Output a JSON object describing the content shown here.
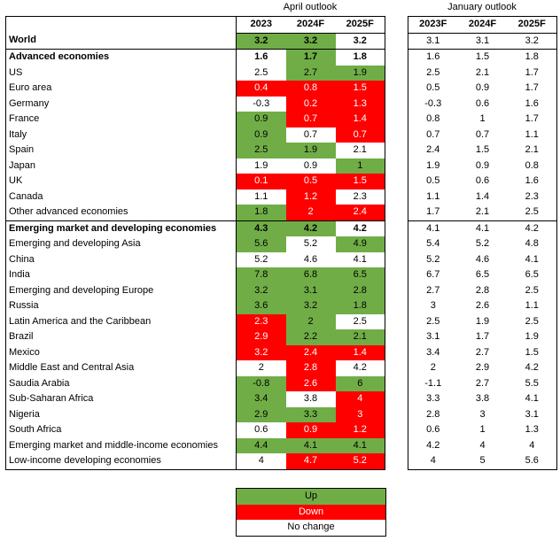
{
  "chart_data": {
    "type": "table",
    "april_caption": "April outlook",
    "january_caption": "January outlook",
    "april_columns": [
      "2023",
      "2024F",
      "2025F"
    ],
    "january_columns": [
      "2023F",
      "2024F",
      "2025F"
    ],
    "rows": [
      {
        "label": "World",
        "bold": true,
        "sep": false,
        "april": [
          "3.2",
          "3.2",
          "3.2"
        ],
        "status": [
          "up",
          "up",
          "same"
        ],
        "january": [
          "3.1",
          "3.1",
          "3.2"
        ]
      },
      {
        "label": "Advanced economies",
        "bold": true,
        "sep": true,
        "april": [
          "1.6",
          "1.7",
          "1.8"
        ],
        "status": [
          "same",
          "up",
          "same"
        ],
        "january": [
          "1.6",
          "1.5",
          "1.8"
        ]
      },
      {
        "label": "US",
        "bold": false,
        "sep": false,
        "april": [
          "2.5",
          "2.7",
          "1.9"
        ],
        "status": [
          "same",
          "up",
          "up"
        ],
        "january": [
          "2.5",
          "2.1",
          "1.7"
        ]
      },
      {
        "label": "Euro area",
        "bold": false,
        "sep": false,
        "april": [
          "0.4",
          "0.8",
          "1.5"
        ],
        "status": [
          "down",
          "down",
          "down"
        ],
        "january": [
          "0.5",
          "0.9",
          "1.7"
        ]
      },
      {
        "label": "Germany",
        "bold": false,
        "sep": false,
        "april": [
          "-0.3",
          "0.2",
          "1.3"
        ],
        "status": [
          "same",
          "down",
          "down"
        ],
        "january": [
          "-0.3",
          "0.6",
          "1.6"
        ]
      },
      {
        "label": "France",
        "bold": false,
        "sep": false,
        "april": [
          "0.9",
          "0.7",
          "1.4"
        ],
        "status": [
          "up",
          "down",
          "down"
        ],
        "january": [
          "0.8",
          "1",
          "1.7"
        ]
      },
      {
        "label": "Italy",
        "bold": false,
        "sep": false,
        "april": [
          "0.9",
          "0.7",
          "0.7"
        ],
        "status": [
          "up",
          "same",
          "down"
        ],
        "january": [
          "0.7",
          "0.7",
          "1.1"
        ]
      },
      {
        "label": "Spain",
        "bold": false,
        "sep": false,
        "april": [
          "2.5",
          "1.9",
          "2.1"
        ],
        "status": [
          "up",
          "up",
          "same"
        ],
        "january": [
          "2.4",
          "1.5",
          "2.1"
        ]
      },
      {
        "label": "Japan",
        "bold": false,
        "sep": false,
        "april": [
          "1.9",
          "0.9",
          "1"
        ],
        "status": [
          "same",
          "same",
          "up"
        ],
        "january": [
          "1.9",
          "0.9",
          "0.8"
        ]
      },
      {
        "label": "UK",
        "bold": false,
        "sep": false,
        "april": [
          "0.1",
          "0.5",
          "1.5"
        ],
        "status": [
          "down",
          "down",
          "down"
        ],
        "january": [
          "0.5",
          "0.6",
          "1.6"
        ]
      },
      {
        "label": "Canada",
        "bold": false,
        "sep": false,
        "april": [
          "1.1",
          "1.2",
          "2.3"
        ],
        "status": [
          "same",
          "down",
          "same"
        ],
        "january": [
          "1.1",
          "1.4",
          "2.3"
        ]
      },
      {
        "label": "Other advanced economies",
        "bold": false,
        "sep": false,
        "april": [
          "1.8",
          "2",
          "2.4"
        ],
        "status": [
          "up",
          "down",
          "down"
        ],
        "january": [
          "1.7",
          "2.1",
          "2.5"
        ]
      },
      {
        "label": "Emerging market and developing economies",
        "bold": true,
        "sep": true,
        "april": [
          "4.3",
          "4.2",
          "4.2"
        ],
        "status": [
          "up",
          "up",
          "same"
        ],
        "january": [
          "4.1",
          "4.1",
          "4.2"
        ]
      },
      {
        "label": "Emerging and developing Asia",
        "bold": false,
        "sep": false,
        "april": [
          "5.6",
          "5.2",
          "4.9"
        ],
        "status": [
          "up",
          "same",
          "up"
        ],
        "january": [
          "5.4",
          "5.2",
          "4.8"
        ]
      },
      {
        "label": "China",
        "bold": false,
        "sep": false,
        "april": [
          "5.2",
          "4.6",
          "4.1"
        ],
        "status": [
          "same",
          "same",
          "same"
        ],
        "january": [
          "5.2",
          "4.6",
          "4.1"
        ]
      },
      {
        "label": "India",
        "bold": false,
        "sep": false,
        "april": [
          "7.8",
          "6.8",
          "6.5"
        ],
        "status": [
          "up",
          "up",
          "up"
        ],
        "january": [
          "6.7",
          "6.5",
          "6.5"
        ]
      },
      {
        "label": "Emerging and developing Europe",
        "bold": false,
        "sep": false,
        "april": [
          "3.2",
          "3.1",
          "2.8"
        ],
        "status": [
          "up",
          "up",
          "up"
        ],
        "january": [
          "2.7",
          "2.8",
          "2.5"
        ]
      },
      {
        "label": "Russia",
        "bold": false,
        "sep": false,
        "april": [
          "3.6",
          "3.2",
          "1.8"
        ],
        "status": [
          "up",
          "up",
          "up"
        ],
        "january": [
          "3",
          "2.6",
          "1.1"
        ]
      },
      {
        "label": "Latin America and the Caribbean",
        "bold": false,
        "sep": false,
        "april": [
          "2.3",
          "2",
          "2.5"
        ],
        "status": [
          "down",
          "up",
          "same"
        ],
        "january": [
          "2.5",
          "1.9",
          "2.5"
        ]
      },
      {
        "label": "Brazil",
        "bold": false,
        "sep": false,
        "april": [
          "2.9",
          "2.2",
          "2.1"
        ],
        "status": [
          "down",
          "up",
          "up"
        ],
        "january": [
          "3.1",
          "1.7",
          "1.9"
        ]
      },
      {
        "label": "Mexico",
        "bold": false,
        "sep": false,
        "april": [
          "3.2",
          "2.4",
          "1.4"
        ],
        "status": [
          "down",
          "down",
          "down"
        ],
        "january": [
          "3.4",
          "2.7",
          "1.5"
        ]
      },
      {
        "label": "Middle East and Central Asia",
        "bold": false,
        "sep": false,
        "april": [
          "2",
          "2.8",
          "4.2"
        ],
        "status": [
          "same",
          "down",
          "same"
        ],
        "january": [
          "2",
          "2.9",
          "4.2"
        ]
      },
      {
        "label": "Saudia Arabia",
        "bold": false,
        "sep": false,
        "april": [
          "-0.8",
          "2.6",
          "6"
        ],
        "status": [
          "up",
          "down",
          "up"
        ],
        "january": [
          "-1.1",
          "2.7",
          "5.5"
        ]
      },
      {
        "label": "Sub-Saharan Africa",
        "bold": false,
        "sep": false,
        "april": [
          "3.4",
          "3.8",
          "4"
        ],
        "status": [
          "up",
          "same",
          "down"
        ],
        "january": [
          "3.3",
          "3.8",
          "4.1"
        ]
      },
      {
        "label": "Nigeria",
        "bold": false,
        "sep": false,
        "april": [
          "2.9",
          "3.3",
          "3"
        ],
        "status": [
          "up",
          "up",
          "down"
        ],
        "january": [
          "2.8",
          "3",
          "3.1"
        ]
      },
      {
        "label": "South Africa",
        "bold": false,
        "sep": false,
        "april": [
          "0.6",
          "0.9",
          "1.2"
        ],
        "status": [
          "same",
          "down",
          "down"
        ],
        "january": [
          "0.6",
          "1",
          "1.3"
        ]
      },
      {
        "label": "Emerging market and middle-income economies",
        "bold": false,
        "sep": false,
        "april": [
          "4.4",
          "4.1",
          "4.1"
        ],
        "status": [
          "up",
          "up",
          "up"
        ],
        "january": [
          "4.2",
          "4",
          "4"
        ]
      },
      {
        "label": "Low-income developing economies",
        "bold": false,
        "sep": false,
        "april": [
          "4",
          "4.7",
          "5.2"
        ],
        "status": [
          "same",
          "down",
          "down"
        ],
        "january": [
          "4",
          "5",
          "5.6"
        ]
      }
    ],
    "legend": [
      {
        "key": "up",
        "label": "Up",
        "color": "#70ad47"
      },
      {
        "key": "down",
        "label": "Down",
        "color": "#ff0000"
      },
      {
        "key": "same",
        "label": "No change",
        "color": "#ffffff"
      }
    ]
  }
}
